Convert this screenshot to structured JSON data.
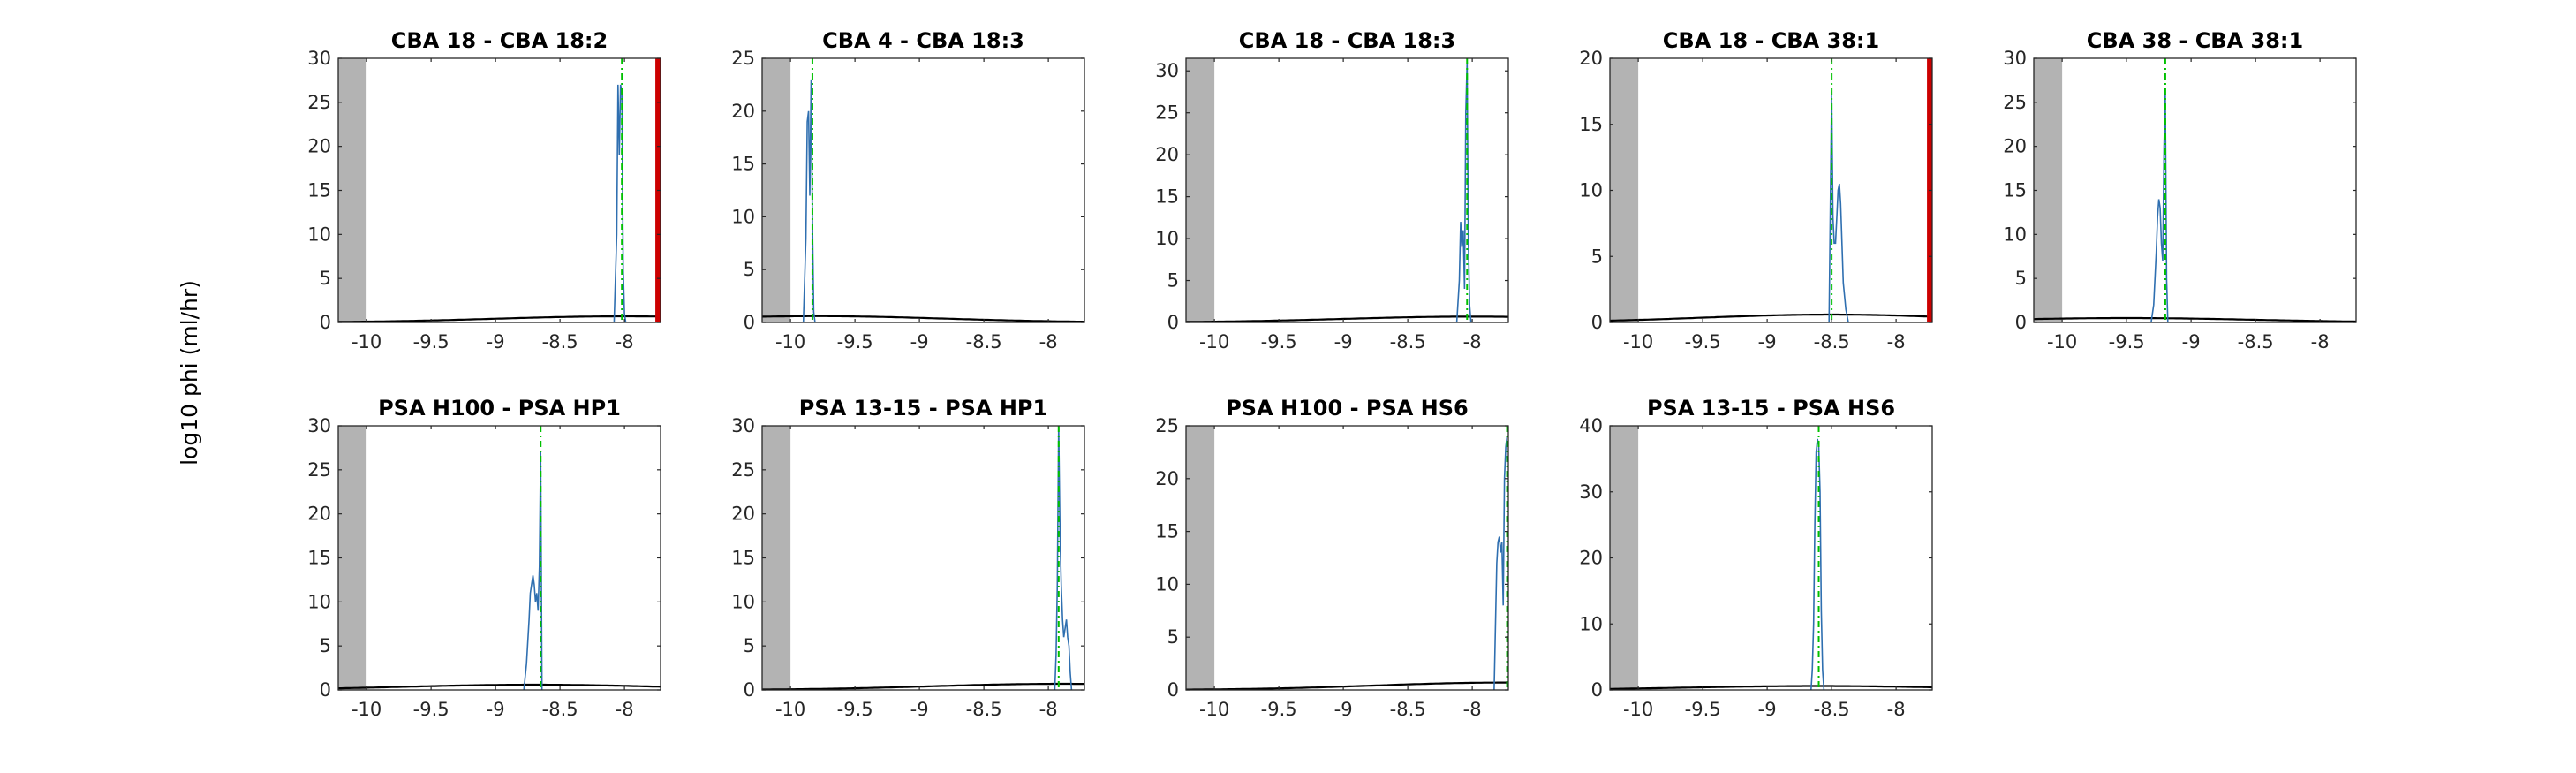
{
  "figure": {
    "ylabel": "log10 phi (ml/hr)",
    "colors": {
      "histogram": "#2f6fb0",
      "dashed_reference": "#00c000",
      "prior_curve": "#000000",
      "limit_line": "#cc0000",
      "shaded_region": "#b3b3b3"
    }
  },
  "chart_data": [
    {
      "type": "line",
      "title": "CBA 18 - CBA 18:2",
      "xlim": [
        -10.22,
        -7.72
      ],
      "ylim": [
        0,
        30
      ],
      "xticks": [
        -10,
        -9.5,
        -9,
        -8.5,
        -8
      ],
      "yticks": [
        0,
        5,
        10,
        15,
        20,
        25,
        30
      ],
      "shaded_region": [
        -10.22,
        -10.0
      ],
      "reference_line_x": -8.02,
      "limit_line_x": -7.74,
      "histogram": {
        "x": [
          -8.08,
          -8.06,
          -8.05,
          -8.04,
          -8.03,
          -8.02,
          -8.01,
          -8.0,
          -7.99
        ],
        "y": [
          0,
          10,
          27,
          19,
          27,
          26,
          6,
          1,
          0
        ]
      },
      "prior_peak": {
        "x": -8.0,
        "y": 0.7
      }
    },
    {
      "type": "line",
      "title": "CBA 4 - CBA 18:3",
      "xlim": [
        -10.22,
        -7.72
      ],
      "ylim": [
        0,
        25
      ],
      "xticks": [
        -10,
        -9.5,
        -9,
        -8.5,
        -8
      ],
      "yticks": [
        0,
        5,
        10,
        15,
        20,
        25
      ],
      "shaded_region": [
        -10.22,
        -10.0
      ],
      "reference_line_x": -9.83,
      "histogram": {
        "x": [
          -9.9,
          -9.88,
          -9.87,
          -9.86,
          -9.85,
          -9.84,
          -9.83,
          -9.82,
          -9.81
        ],
        "y": [
          0,
          8,
          19,
          20,
          12,
          23,
          10,
          1,
          0
        ]
      },
      "prior_peak": {
        "x": -9.8,
        "y": 0.6
      }
    },
    {
      "type": "line",
      "title": "CBA 18 - CBA 18:3",
      "xlim": [
        -10.22,
        -7.72
      ],
      "ylim": [
        0,
        31.5
      ],
      "xticks": [
        -10,
        -9.5,
        -9,
        -8.5,
        -8
      ],
      "yticks": [
        0,
        5,
        10,
        15,
        20,
        25,
        30
      ],
      "shaded_region": [
        -10.22,
        -10.0
      ],
      "reference_line_x": -8.04,
      "histogram": {
        "x": [
          -8.12,
          -8.1,
          -8.09,
          -8.08,
          -8.07,
          -8.06,
          -8.05,
          -8.04,
          -8.03,
          -8.02,
          -8.01
        ],
        "y": [
          0,
          5,
          12,
          9,
          11,
          4,
          25,
          31,
          10,
          2,
          0
        ]
      },
      "prior_peak": {
        "x": -8.0,
        "y": 0.7
      }
    },
    {
      "type": "line",
      "title": "CBA 18 - CBA 38:1",
      "xlim": [
        -10.22,
        -7.72
      ],
      "ylim": [
        0,
        20
      ],
      "xticks": [
        -10,
        -9.5,
        -9,
        -8.5,
        -8
      ],
      "yticks": [
        0,
        5,
        10,
        15,
        20
      ],
      "shaded_region": [
        -10.22,
        -10.0
      ],
      "reference_line_x": -8.5,
      "limit_line_x": -7.74,
      "histogram": {
        "x": [
          -8.52,
          -8.51,
          -8.5,
          -8.49,
          -8.48,
          -8.47,
          -8.46,
          -8.45,
          -8.44,
          -8.43,
          -8.42,
          -8.41,
          -8.39,
          -8.37
        ],
        "y": [
          0,
          9,
          17.5,
          8,
          6,
          6,
          8,
          10,
          10.5,
          9,
          6,
          3,
          1,
          0
        ]
      },
      "prior_peak": {
        "x": -8.5,
        "y": 0.6
      }
    },
    {
      "type": "line",
      "title": "CBA 38 - CBA 38:1",
      "xlim": [
        -10.22,
        -7.72
      ],
      "ylim": [
        0,
        30
      ],
      "xticks": [
        -10,
        -9.5,
        -9,
        -8.5,
        -8
      ],
      "yticks": [
        0,
        5,
        10,
        15,
        20,
        25,
        30
      ],
      "shaded_region": [
        -10.22,
        -10.0
      ],
      "reference_line_x": -9.2,
      "histogram": {
        "x": [
          -9.31,
          -9.29,
          -9.27,
          -9.26,
          -9.25,
          -9.24,
          -9.23,
          -9.22,
          -9.21,
          -9.2,
          -9.19,
          -9.18
        ],
        "y": [
          0,
          2,
          8,
          12,
          14,
          13,
          9,
          7,
          20,
          26,
          5,
          0
        ]
      },
      "prior_peak": {
        "x": -9.5,
        "y": 0.5
      }
    },
    {
      "type": "line",
      "title": "PSA H100 - PSA HP1",
      "xlim": [
        -10.22,
        -7.72
      ],
      "ylim": [
        0,
        30
      ],
      "xticks": [
        -10,
        -9.5,
        -9,
        -8.5,
        -8
      ],
      "yticks": [
        0,
        5,
        10,
        15,
        20,
        25,
        30
      ],
      "shaded_region": [
        -10.22,
        -10.0
      ],
      "reference_line_x": -8.65,
      "histogram": {
        "x": [
          -8.78,
          -8.76,
          -8.74,
          -8.73,
          -8.72,
          -8.71,
          -8.7,
          -8.69,
          -8.68,
          -8.67,
          -8.66,
          -8.65,
          -8.64
        ],
        "y": [
          0,
          3,
          8,
          11,
          12,
          13,
          12,
          10,
          11,
          9,
          14,
          27,
          0
        ]
      },
      "prior_peak": {
        "x": -8.7,
        "y": 0.6
      }
    },
    {
      "type": "line",
      "title": "PSA 13-15 - PSA HP1",
      "xlim": [
        -10.22,
        -7.72
      ],
      "ylim": [
        0,
        30
      ],
      "xticks": [
        -10,
        -9.5,
        -9,
        -8.5,
        -8
      ],
      "yticks": [
        0,
        5,
        10,
        15,
        20,
        25,
        30
      ],
      "shaded_region": [
        -10.22,
        -10.0
      ],
      "reference_line_x": -7.92,
      "histogram": {
        "x": [
          -7.95,
          -7.94,
          -7.93,
          -7.92,
          -7.91,
          -7.9,
          -7.89,
          -7.88,
          -7.87,
          -7.86,
          -7.85,
          -7.84,
          -7.83,
          -7.82
        ],
        "y": [
          0,
          4,
          12,
          30,
          18,
          12,
          8,
          6,
          7,
          8,
          6,
          5,
          2,
          0
        ]
      },
      "prior_peak": {
        "x": -7.9,
        "y": 0.7
      }
    },
    {
      "type": "line",
      "title": "PSA H100 - PSA HS6",
      "xlim": [
        -10.22,
        -7.72
      ],
      "ylim": [
        0,
        25
      ],
      "xticks": [
        -10,
        -9.5,
        -9,
        -8.5,
        -8
      ],
      "yticks": [
        0,
        5,
        10,
        15,
        20,
        25
      ],
      "shaded_region": [
        -10.22,
        -10.0
      ],
      "reference_line_x": -7.73,
      "histogram": {
        "x": [
          -7.83,
          -7.82,
          -7.81,
          -7.8,
          -7.79,
          -7.78,
          -7.77,
          -7.76,
          -7.75,
          -7.74,
          -7.73
        ],
        "y": [
          0,
          6,
          12,
          14,
          14.5,
          13,
          14,
          8,
          20,
          23,
          24
        ]
      },
      "prior_peak": {
        "x": -7.75,
        "y": 0.7
      }
    },
    {
      "type": "line",
      "title": "PSA 13-15 - PSA HS6",
      "xlim": [
        -10.22,
        -7.72
      ],
      "ylim": [
        0,
        40
      ],
      "xticks": [
        -10,
        -9.5,
        -9,
        -8.5,
        -8
      ],
      "yticks": [
        0,
        10,
        20,
        30,
        40
      ],
      "shaded_region": [
        -10.22,
        -10.0
      ],
      "reference_line_x": -8.6,
      "histogram": {
        "x": [
          -8.66,
          -8.65,
          -8.64,
          -8.63,
          -8.62,
          -8.61,
          -8.6,
          -8.59,
          -8.58,
          -8.57,
          -8.56
        ],
        "y": [
          0,
          3,
          10,
          25,
          36,
          38,
          37,
          30,
          12,
          3,
          0
        ]
      },
      "prior_peak": {
        "x": -8.6,
        "y": 0.6
      }
    }
  ]
}
